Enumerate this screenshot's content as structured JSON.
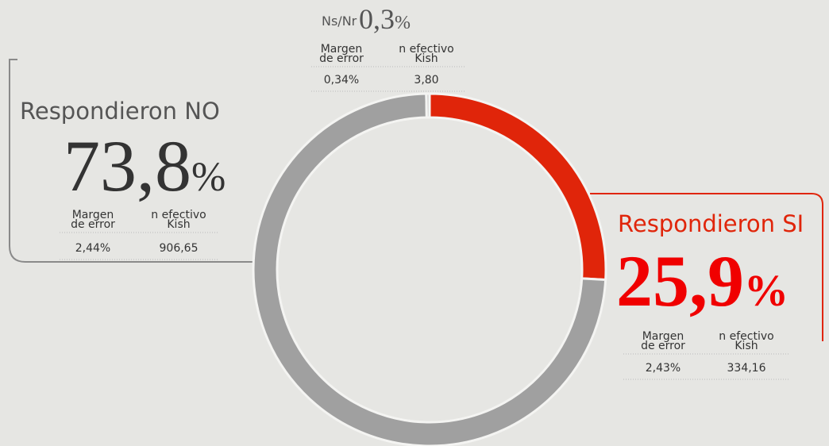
{
  "chart_data": {
    "type": "donut",
    "categories": [
      "Respondieron SI",
      "Respondieron NO",
      "Ns/Nr"
    ],
    "values": [
      25.9,
      73.8,
      0.3
    ],
    "value_labels": [
      "25,9",
      "73,8",
      "0,3"
    ],
    "value_unit": "%",
    "colors": [
      "#e0250a",
      "#a0a0a0",
      "#c8c8c8"
    ],
    "stat_headers": [
      [
        "Margen",
        "de error"
      ],
      [
        "n efectivo",
        "Kish"
      ]
    ],
    "stats": [
      [
        "2,43%",
        "334,16"
      ],
      [
        "2,44%",
        "906,65"
      ],
      [
        "0,34%",
        "3,80"
      ]
    ]
  }
}
